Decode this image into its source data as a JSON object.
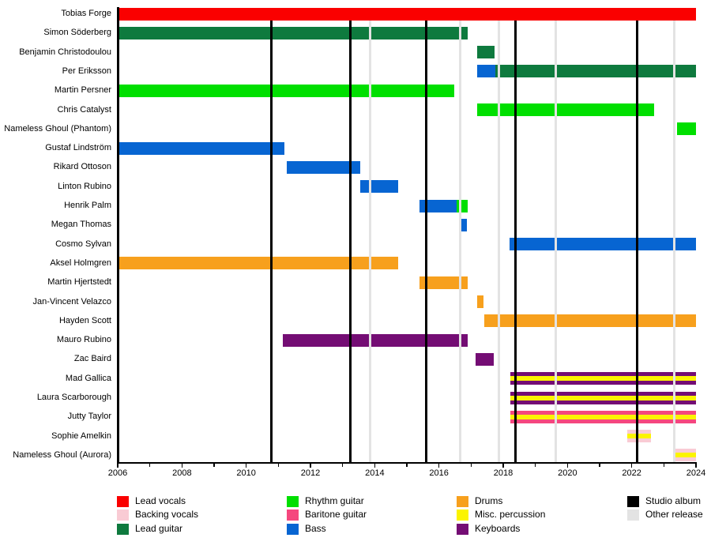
{
  "chart_data": {
    "type": "timeline",
    "title": "",
    "x_axis": {
      "start": 2006,
      "end": 2024,
      "tick_years": [
        2006,
        2008,
        2010,
        2012,
        2014,
        2016,
        2018,
        2020,
        2022,
        2024
      ],
      "tick_labels": [
        "2006",
        "2008",
        "2010",
        "2012",
        "2014",
        "2016",
        "2018",
        "2020",
        "2022",
        "2024"
      ],
      "minor_tick_step": 1,
      "grid": false
    },
    "palette": {
      "lead_vocals": "#FA0000",
      "backing_vocals": "#F9CBD4",
      "lead_guitar": "#0E7A3E",
      "rhythm_guitar": "#00DF00",
      "baritone_guitar": "#F5477E",
      "bass": "#0765D2",
      "drums": "#F7A01D",
      "misc_percussion": "#FBF400",
      "keyboards": "#740D74",
      "studio_album": "#000000",
      "other_release": "#E3E3E3"
    },
    "studio_album_years": [
      2010.78,
      2013.25,
      2015.61,
      2018.37,
      2022.16
    ],
    "other_release_years": [
      2013.86,
      2016.65,
      2017.86,
      2019.63,
      2023.32
    ],
    "members": [
      {
        "name": "Tobias Forge",
        "segments": [
          {
            "role": "lead_vocals",
            "start": 2006,
            "end": 2024
          }
        ]
      },
      {
        "name": "Simon Söderberg",
        "segments": [
          {
            "role": "lead_guitar",
            "start": 2006,
            "end": 2016.9
          }
        ]
      },
      {
        "name": "Benjamin Christodoulou",
        "segments": [
          {
            "role": "lead_guitar",
            "start": 2017.2,
            "end": 2017.73
          }
        ]
      },
      {
        "name": "Per Eriksson",
        "segments": [
          {
            "role": "bass",
            "start": 2017.2,
            "end": 2017.75
          },
          {
            "role": "lead_guitar",
            "start": 2017.75,
            "end": 2024
          }
        ]
      },
      {
        "name": "Martin Persner",
        "segments": [
          {
            "role": "rhythm_guitar",
            "start": 2006,
            "end": 2016.48
          }
        ]
      },
      {
        "name": "Chris Catalyst",
        "segments": [
          {
            "role": "rhythm_guitar",
            "start": 2017.2,
            "end": 2022.7
          }
        ]
      },
      {
        "name": "Nameless Ghoul (Phantom)",
        "segments": [
          {
            "role": "rhythm_guitar",
            "start": 2023.4,
            "end": 2024
          }
        ]
      },
      {
        "name": "Gustaf Lindström",
        "segments": [
          {
            "role": "bass",
            "start": 2006,
            "end": 2011.2
          }
        ]
      },
      {
        "name": "Rikard Ottoson",
        "segments": [
          {
            "role": "bass",
            "start": 2011.25,
            "end": 2013.55
          }
        ]
      },
      {
        "name": "Linton Rubino",
        "segments": [
          {
            "role": "bass",
            "start": 2013.55,
            "end": 2014.73
          }
        ]
      },
      {
        "name": "Henrik Palm",
        "segments": [
          {
            "role": "bass",
            "start": 2015.4,
            "end": 2016.55
          },
          {
            "role": "rhythm_guitar",
            "start": 2016.55,
            "end": 2016.9
          }
        ]
      },
      {
        "name": "Megan Thomas",
        "segments": [
          {
            "role": "bass",
            "start": 2016.68,
            "end": 2016.88
          }
        ]
      },
      {
        "name": "Cosmo Sylvan",
        "segments": [
          {
            "role": "bass",
            "start": 2018.2,
            "end": 2024
          }
        ]
      },
      {
        "name": "Aksel Holmgren",
        "segments": [
          {
            "role": "drums",
            "start": 2006,
            "end": 2014.73
          }
        ]
      },
      {
        "name": "Martin Hjertstedt",
        "segments": [
          {
            "role": "drums",
            "start": 2015.4,
            "end": 2016.9
          }
        ]
      },
      {
        "name": "Jan-Vincent Velazco",
        "segments": [
          {
            "role": "drums",
            "start": 2017.2,
            "end": 2017.38
          }
        ]
      },
      {
        "name": "Hayden Scott",
        "segments": [
          {
            "role": "drums",
            "start": 2017.4,
            "end": 2024
          }
        ]
      },
      {
        "name": "Mauro Rubino",
        "segments": [
          {
            "role": "keyboards",
            "start": 2011.15,
            "end": 2016.9
          }
        ]
      },
      {
        "name": "Zac Baird",
        "segments": [
          {
            "role": "keyboards",
            "start": 2017.15,
            "end": 2017.7
          }
        ]
      },
      {
        "name": "Mad Gallica",
        "segments": [
          {
            "role": "keyboards",
            "stripe_role": "misc_percussion",
            "start": 2018.22,
            "end": 2024
          }
        ]
      },
      {
        "name": "Laura Scarborough",
        "segments": [
          {
            "role": "keyboards",
            "stripe_role": "misc_percussion",
            "start": 2018.22,
            "end": 2024
          }
        ]
      },
      {
        "name": "Jutty Taylor",
        "segments": [
          {
            "role": "baritone_guitar",
            "stripe_role": "misc_percussion",
            "start": 2018.22,
            "end": 2024
          }
        ]
      },
      {
        "name": "Sophie Amelkin",
        "segments": [
          {
            "role": "backing_vocals",
            "stripe_role": "misc_percussion",
            "start": 2021.85,
            "end": 2022.6
          }
        ]
      },
      {
        "name": "Nameless Ghoul (Aurora)",
        "segments": [
          {
            "role": "backing_vocals",
            "stripe_role": "misc_percussion",
            "start": 2023.32,
            "end": 2024
          }
        ]
      }
    ],
    "legend_columns": [
      {
        "items": [
          {
            "label": "Lead vocals",
            "role": "lead_vocals"
          },
          {
            "label": "Backing vocals",
            "role": "backing_vocals"
          },
          {
            "label": "Lead guitar",
            "role": "lead_guitar"
          }
        ]
      },
      {
        "items": [
          {
            "label": "Rhythm guitar",
            "role": "rhythm_guitar"
          },
          {
            "label": "Baritone guitar",
            "role": "baritone_guitar"
          },
          {
            "label": "Bass",
            "role": "bass"
          }
        ]
      },
      {
        "items": [
          {
            "label": "Drums",
            "role": "drums"
          },
          {
            "label": "Misc. percussion",
            "role": "misc_percussion"
          },
          {
            "label": "Keyboards",
            "role": "keyboards"
          }
        ]
      },
      {
        "items": [
          {
            "label": "Studio album",
            "role": "studio_album"
          },
          {
            "label": "Other release",
            "role": "other_release"
          }
        ]
      }
    ]
  }
}
